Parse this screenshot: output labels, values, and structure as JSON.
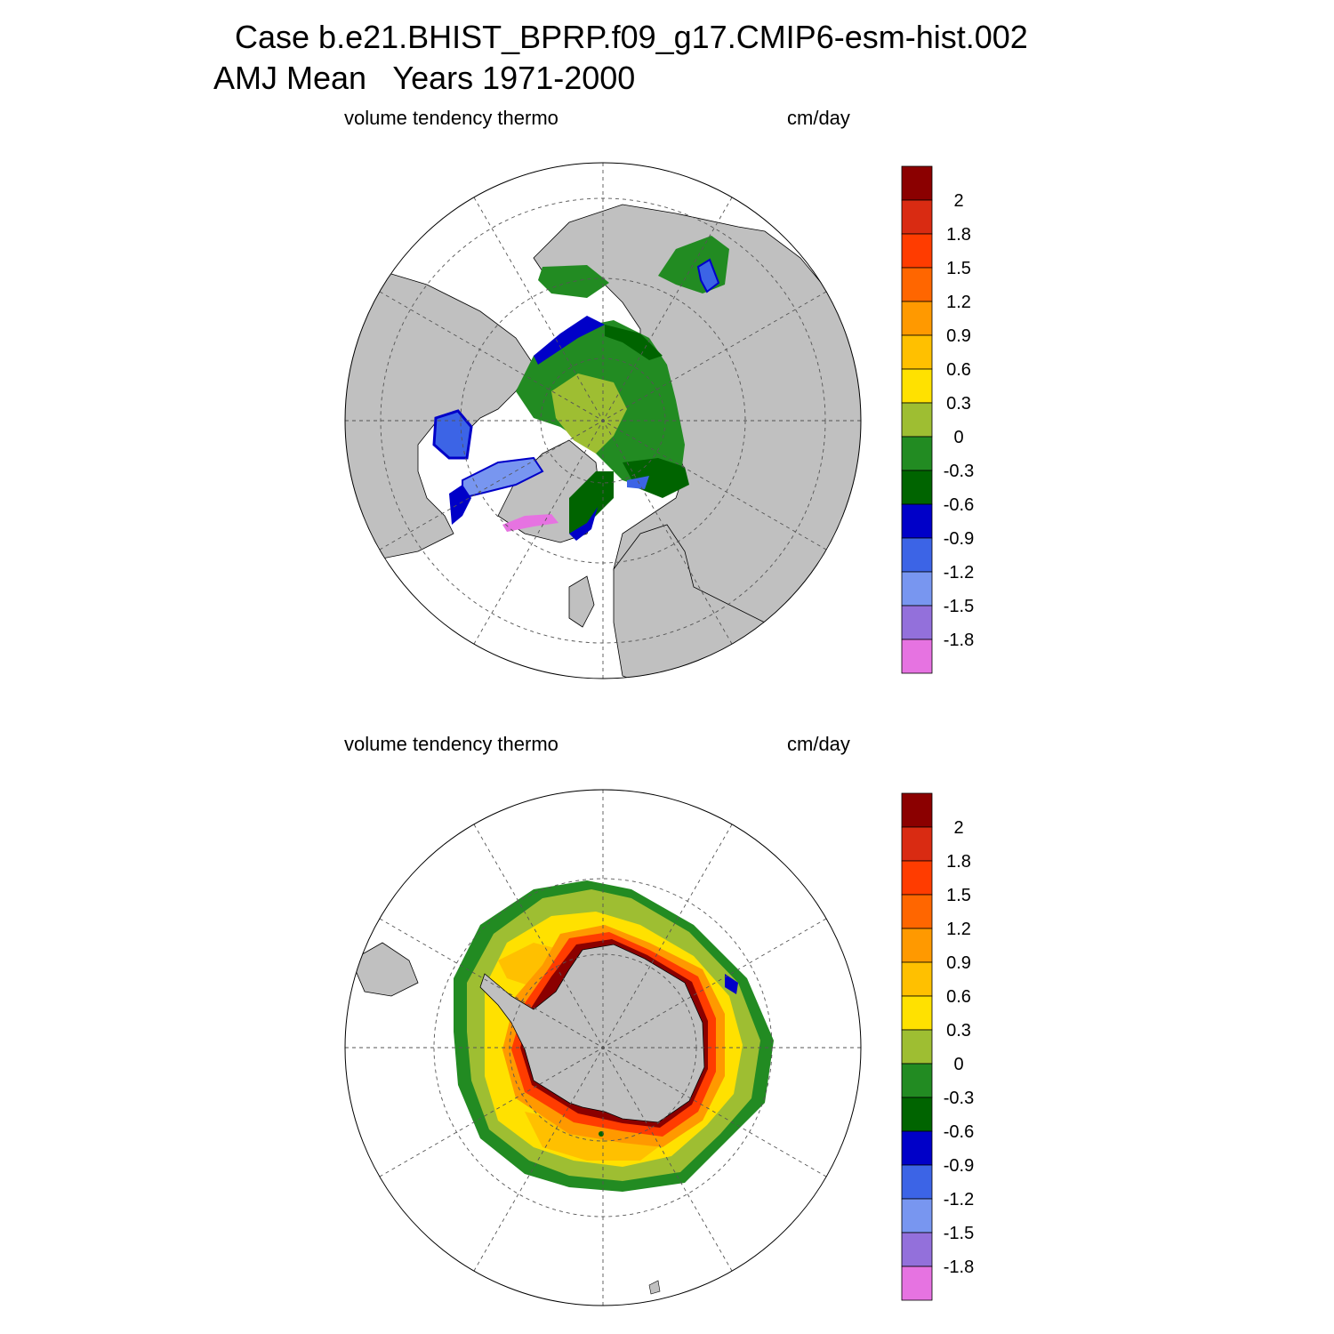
{
  "header": {
    "line1": "Case b.e21.BHIST_BPRP.f09_g17.CMIP6-esm-hist.002",
    "line2": "AMJ Mean   Years 1971-2000"
  },
  "maps": [
    {
      "hemisphere": "north",
      "variable_label": "volume tendency thermo",
      "units_label": "cm/day"
    },
    {
      "hemisphere": "south",
      "variable_label": "volume tendency thermo",
      "units_label": "cm/day"
    }
  ],
  "colorbar": {
    "labels": [
      "2",
      "1.8",
      "1.5",
      "1.2",
      "0.9",
      "0.6",
      "0.3",
      "0",
      "-0.3",
      "-0.6",
      "-0.9",
      "-1.2",
      "-1.5",
      "-1.8"
    ],
    "colors": [
      "#8b0000",
      "#d92b12",
      "#ff3c00",
      "#ff6600",
      "#ff9900",
      "#ffc000",
      "#ffe100",
      "#9ebe32",
      "#228b22",
      "#006400",
      "#0000c8",
      "#3c64e6",
      "#7896f0",
      "#9370db",
      "#e673e1"
    ]
  },
  "colors": {
    "land": "#c0c0c0",
    "ocean_open": "#ffffff"
  }
}
